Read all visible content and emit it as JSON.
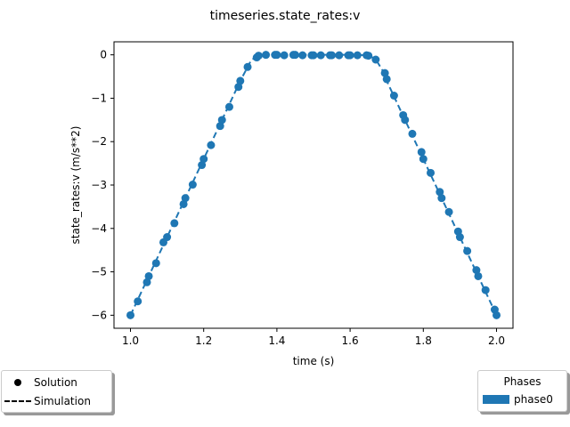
{
  "chart_data": {
    "type": "scatter",
    "title": "timeseries.state_rates:v",
    "xlabel": "time (s)",
    "ylabel": "state_rates:v (m/s**2)",
    "xlim": [
      0.955,
      2.045
    ],
    "ylim": [
      -6.3,
      0.3
    ],
    "xticks": [
      "1.0",
      "1.2",
      "1.4",
      "1.6",
      "1.8",
      "2.0"
    ],
    "xtick_values": [
      1.0,
      1.2,
      1.4,
      1.6,
      1.8,
      2.0
    ],
    "yticks": [
      "0",
      "−1",
      "−2",
      "−3",
      "−4",
      "−5",
      "−6"
    ],
    "ytick_values": [
      0,
      -1,
      -2,
      -3,
      -4,
      -5,
      -6
    ],
    "grid": false,
    "series": [
      {
        "name": "Solution",
        "style": "markers",
        "color": "#1f77b4",
        "x": [
          1.0,
          1.02,
          1.045,
          1.05,
          1.07,
          1.09,
          1.1,
          1.12,
          1.145,
          1.15,
          1.17,
          1.195,
          1.2,
          1.22,
          1.245,
          1.25,
          1.27,
          1.295,
          1.3,
          1.32,
          1.345,
          1.35,
          1.37,
          1.395,
          1.4,
          1.42,
          1.445,
          1.45,
          1.47,
          1.495,
          1.5,
          1.52,
          1.545,
          1.55,
          1.57,
          1.595,
          1.6,
          1.62,
          1.645,
          1.65,
          1.67,
          1.695,
          1.7,
          1.72,
          1.745,
          1.75,
          1.77,
          1.795,
          1.8,
          1.82,
          1.845,
          1.85,
          1.87,
          1.895,
          1.9,
          1.92,
          1.945,
          1.95,
          1.97,
          1.995,
          2.0
        ],
        "y": [
          -6.0,
          -5.68,
          -5.24,
          -5.1,
          -4.8,
          -4.32,
          -4.2,
          -3.88,
          -3.44,
          -3.3,
          -2.99,
          -2.54,
          -2.4,
          -2.08,
          -1.64,
          -1.5,
          -1.2,
          -0.74,
          -0.6,
          -0.28,
          -0.06,
          -0.02,
          0.0,
          0.0,
          0.0,
          -0.01,
          0.0,
          0.0,
          -0.01,
          -0.01,
          -0.01,
          -0.01,
          -0.01,
          -0.01,
          -0.01,
          -0.01,
          -0.01,
          -0.01,
          -0.01,
          -0.02,
          -0.11,
          -0.42,
          -0.56,
          -0.94,
          -1.39,
          -1.5,
          -1.82,
          -2.24,
          -2.4,
          -2.72,
          -3.16,
          -3.3,
          -3.62,
          -4.07,
          -4.2,
          -4.52,
          -4.96,
          -5.1,
          -5.42,
          -5.87,
          -6.0
        ]
      },
      {
        "name": "Simulation",
        "style": "dashed",
        "color": "#1f77b4",
        "x": [
          1.0,
          1.1,
          1.2,
          1.3,
          1.33,
          1.35,
          1.37,
          1.4,
          1.5,
          1.6,
          1.65,
          1.67,
          1.69,
          1.7,
          1.8,
          1.9,
          2.0
        ],
        "y": [
          -6.0,
          -4.2,
          -2.4,
          -0.6,
          -0.12,
          -0.02,
          0.0,
          0.0,
          0.0,
          0.0,
          -0.01,
          -0.1,
          -0.38,
          -0.6,
          -2.4,
          -4.2,
          -6.0
        ]
      }
    ],
    "legend_left": {
      "placement": "bottom-left",
      "entries": [
        {
          "label": "Solution",
          "symbol": "marker"
        },
        {
          "label": "Simulation",
          "symbol": "dashed-line"
        }
      ]
    },
    "legend_right": {
      "placement": "bottom-right",
      "title": "Phases",
      "entries": [
        {
          "label": "phase0",
          "color": "#1f77b4"
        }
      ]
    }
  }
}
